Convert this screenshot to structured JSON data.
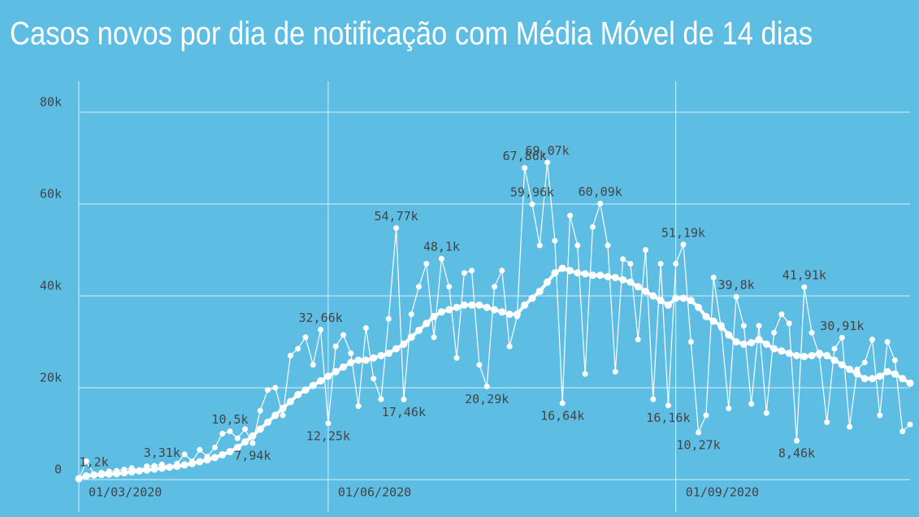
{
  "chart_data": {
    "type": "line",
    "title": "Casos novos por dia de notificação com Média Móvel de 14 dias",
    "categories": [
      "01/03/2020",
      null,
      null,
      null,
      null,
      null,
      null,
      null,
      null,
      null,
      null,
      null,
      null,
      null,
      null,
      null,
      null,
      null,
      null,
      null,
      null,
      null,
      null,
      null,
      null,
      null,
      null,
      null,
      null,
      null,
      null,
      null,
      null,
      "01/06/2020",
      null,
      null,
      null,
      null,
      null,
      null,
      null,
      null,
      null,
      null,
      null,
      null,
      null,
      null,
      null,
      null,
      null,
      null,
      null,
      null,
      null,
      null,
      null,
      null,
      null,
      null,
      null,
      null,
      null,
      null,
      null,
      null,
      null,
      null,
      null,
      null,
      null,
      null,
      null,
      null,
      null,
      null,
      null,
      null,
      null,
      "01/09/2020",
      null,
      null,
      null,
      null,
      null,
      null,
      null,
      null,
      null,
      null,
      null,
      null,
      null,
      null,
      null,
      null,
      null,
      null,
      null,
      null,
      null,
      null,
      null,
      null,
      null,
      null,
      null,
      null,
      null,
      null,
      null
    ],
    "series": [
      {
        "color": "#ffffff",
        "values": [
          0,
          4000,
          1200,
          1500,
          1800,
          1900,
          2200,
          2500,
          2100,
          2900,
          3000,
          3310,
          2800,
          3500,
          5500,
          4000,
          6500,
          5000,
          7000,
          10000,
          10500,
          9000,
          11000,
          7940,
          15000,
          19500,
          20000,
          14000,
          27000,
          28500,
          31000,
          25000,
          32660,
          12250,
          29000,
          31500,
          27500,
          16000,
          33000,
          22000,
          17500,
          35000,
          54770,
          17460,
          36000,
          42000,
          47000,
          31000,
          48100,
          42000,
          26500,
          45000,
          45500,
          25000,
          20290,
          42000,
          45500,
          29000,
          35500,
          67860,
          59960,
          51000,
          69070,
          52000,
          16640,
          57500,
          51000,
          23000,
          55000,
          60090,
          51000,
          23500,
          48000,
          47000,
          30500,
          50000,
          17500,
          47000,
          16160,
          47000,
          51190,
          30000,
          10270,
          14000,
          44000,
          33000,
          15500,
          39800,
          33500,
          16500,
          33500,
          14500,
          32000,
          36000,
          34000,
          8460,
          41910,
          32000,
          27000,
          12500,
          28500,
          30910,
          11500,
          24000,
          25500,
          30500,
          14000,
          30000,
          26000,
          10500,
          12000
        ],
        "value_labels": [
          null,
          null,
          "1,2k",
          null,
          null,
          null,
          null,
          null,
          null,
          null,
          null,
          "3,31k",
          null,
          null,
          null,
          null,
          null,
          null,
          null,
          null,
          "10,5k",
          null,
          null,
          "7,94k",
          null,
          null,
          null,
          null,
          null,
          null,
          null,
          null,
          "32,66k",
          "12,25k",
          null,
          null,
          null,
          null,
          null,
          null,
          null,
          null,
          "54,77k",
          "17,46k",
          null,
          null,
          null,
          null,
          "48,1k",
          null,
          null,
          null,
          null,
          null,
          "20,29k",
          null,
          null,
          null,
          null,
          "67,86k",
          "59,96k",
          null,
          "69,07k",
          null,
          "16,64k",
          null,
          null,
          null,
          null,
          "60,09k",
          null,
          null,
          null,
          null,
          null,
          null,
          null,
          null,
          "16,16k",
          null,
          "51,19k",
          null,
          "10,27k",
          null,
          null,
          null,
          null,
          "39,8k",
          null,
          null,
          null,
          null,
          null,
          null,
          null,
          "8,46k",
          "41,91k",
          null,
          null,
          null,
          null,
          "30,91k",
          null,
          null,
          null,
          null,
          null,
          null,
          null,
          null,
          null
        ]
      },
      {
        "color": "#ffffff",
        "values": [
          200,
          800,
          1000,
          1100,
          1200,
          1300,
          1500,
          1700,
          1900,
          2100,
          2300,
          2500,
          2700,
          2900,
          3200,
          3500,
          3900,
          4300,
          4800,
          5400,
          6100,
          7000,
          8200,
          9500,
          11000,
          12500,
          14000,
          15500,
          17000,
          18500,
          19500,
          20500,
          21500,
          22500,
          23500,
          24500,
          25500,
          26000,
          26000,
          26500,
          27000,
          27500,
          28500,
          29500,
          31000,
          32500,
          34000,
          35500,
          36500,
          37000,
          37500,
          38000,
          38000,
          38000,
          37500,
          37000,
          36500,
          36000,
          36000,
          38000,
          39500,
          41000,
          43000,
          45000,
          46000,
          45500,
          45000,
          44800,
          44500,
          44500,
          44200,
          44000,
          43500,
          43000,
          42000,
          41000,
          40000,
          39000,
          38000,
          39500,
          39500,
          39000,
          37500,
          35500,
          34500,
          33500,
          31500,
          30000,
          29500,
          29800,
          30500,
          29500,
          28500,
          28000,
          27500,
          27000,
          26800,
          27000,
          27500,
          27000,
          26000,
          25000,
          24000,
          23000,
          22000,
          22000,
          22500,
          23500,
          23000,
          22000,
          21000
        ]
      }
    ],
    "ylim": [
      0,
      80000
    ],
    "yticks": [
      0,
      {
        "value": 20000,
        "label": "20k"
      },
      {
        "value": 40000,
        "label": "40k"
      },
      {
        "value": 60000,
        "label": "60k"
      },
      {
        "value": 80000,
        "label": "80k"
      }
    ],
    "grid": true
  }
}
